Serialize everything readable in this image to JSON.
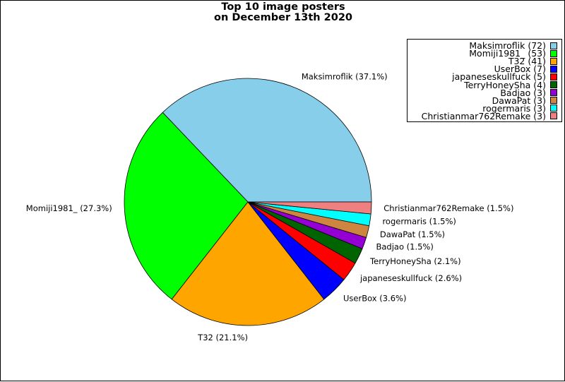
{
  "chart_data": {
    "type": "pie",
    "title": "Top 10 image posters\non December 13th 2020",
    "slices": [
      {
        "name": "Maksimroflik",
        "value": 72,
        "percent_label": "37.1%",
        "color": "#87CEEB"
      },
      {
        "name": "Momiji1981_",
        "value": 53,
        "percent_label": "27.3%",
        "color": "#00FF00"
      },
      {
        "name": "T32",
        "value": 41,
        "percent_label": "21.1%",
        "color": "#FFA500"
      },
      {
        "name": "UserBox",
        "value": 7,
        "percent_label": "3.6%",
        "color": "#0000FF"
      },
      {
        "name": "japaneseskullfuck",
        "value": 5,
        "percent_label": "2.6%",
        "color": "#FF0000"
      },
      {
        "name": "TerryHoneySha",
        "value": 4,
        "percent_label": "2.1%",
        "color": "#006400"
      },
      {
        "name": "Badjao",
        "value": 3,
        "percent_label": "1.5%",
        "color": "#9400D3"
      },
      {
        "name": "DawaPat",
        "value": 3,
        "percent_label": "1.5%",
        "color": "#CD853F"
      },
      {
        "name": "rogermaris",
        "value": 3,
        "percent_label": "1.5%",
        "color": "#00FFFF"
      },
      {
        "name": "Christianmar762Remake",
        "value": 3,
        "percent_label": "1.5%",
        "color": "#F08080"
      }
    ],
    "start_angle": "0 degrees (3 o'clock), counterclockwise",
    "legend_placement": "top-right"
  }
}
